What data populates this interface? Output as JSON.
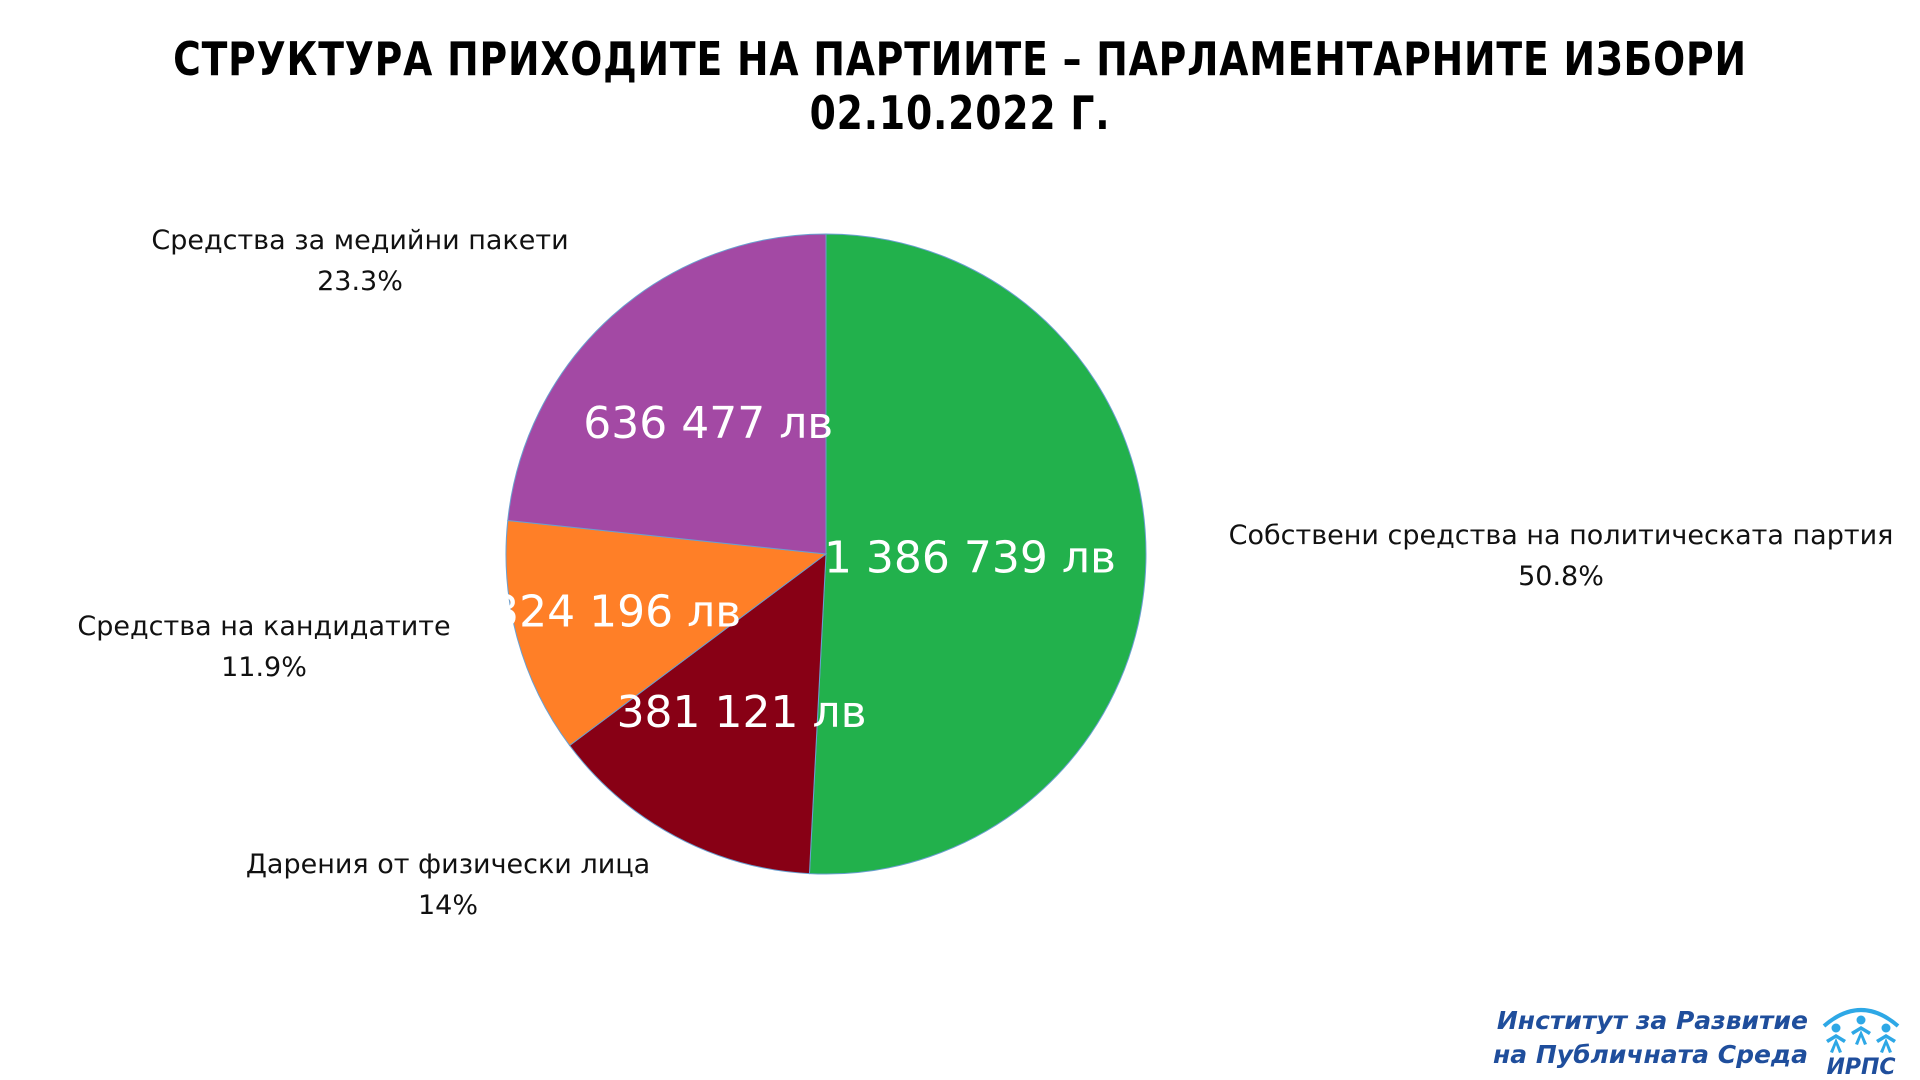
{
  "title": "СТРУКТУРА ПРИХОДИТЕ НА ПАРТИИТЕ – ПАРЛАМЕНТАРНИТЕ ИЗБОРИ 02.10.2022 Г.",
  "chart_data": {
    "type": "pie",
    "start_angle_deg": 0,
    "direction": "clockwise",
    "slices": [
      {
        "name": "Собствени средства на политическата партия",
        "value": 1386739,
        "value_label": "1 386 739 лв",
        "percent_label": "50.8%",
        "color": "#22b14c"
      },
      {
        "name": "Дарения от физически лица",
        "value": 381121,
        "value_label": "381 121 лв",
        "percent_label": "14%",
        "color": "#880015"
      },
      {
        "name": "Средства на кандидатите",
        "value": 324196,
        "value_label": "324 196 лв",
        "percent_label": "11.9%",
        "color": "#ff7f27"
      },
      {
        "name": "Средства за медийни пакети",
        "value": 636477,
        "value_label": "636 477 лв",
        "percent_label": "23.3%",
        "color": "#a349a4"
      }
    ]
  },
  "logo": {
    "line1": "Институт за Развитие",
    "line2": "на Публичната Среда",
    "abbr": "ИРПС",
    "color": "#1f4e9c",
    "accent": "#2ea8e6"
  }
}
